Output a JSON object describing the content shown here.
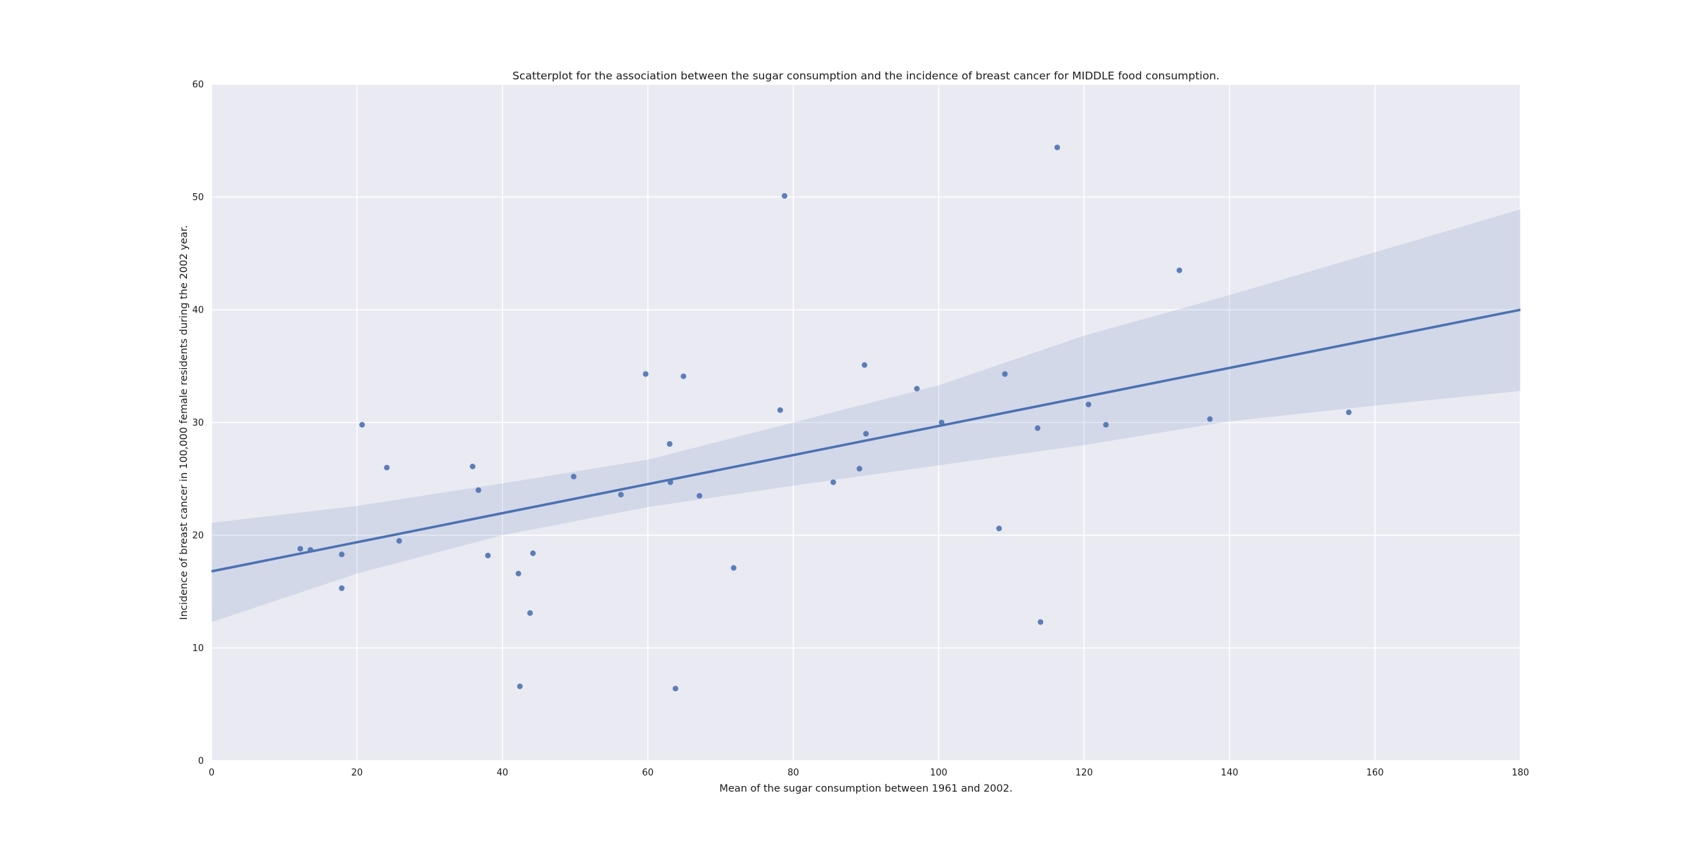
{
  "chart_data": {
    "type": "scatter",
    "title": "Scatterplot for the association between the sugar consumption and the incidence of breast cancer for MIDDLE food consumption.",
    "xlabel": "Mean of the sugar consumption between 1961 and 2002.",
    "ylabel": "Incidence of breast cancer in 100,000 female residents during the 2002 year.",
    "xlim": [
      0,
      180
    ],
    "ylim": [
      0,
      60
    ],
    "xticks": [
      0,
      20,
      40,
      60,
      80,
      100,
      120,
      140,
      160,
      180
    ],
    "yticks": [
      0,
      10,
      20,
      30,
      40,
      50,
      60
    ],
    "grid": true,
    "colors": {
      "background": "#eaeaf2",
      "grid": "#ffffff",
      "points": "#4c72b0",
      "regression_line": "#4c72b0",
      "confidence_band": "#4c72b0"
    },
    "points": [
      {
        "x": 12.2,
        "y": 18.8
      },
      {
        "x": 13.6,
        "y": 18.7
      },
      {
        "x": 17.9,
        "y": 18.3
      },
      {
        "x": 17.9,
        "y": 15.3
      },
      {
        "x": 20.7,
        "y": 29.8
      },
      {
        "x": 24.1,
        "y": 26.0
      },
      {
        "x": 25.8,
        "y": 19.5
      },
      {
        "x": 35.9,
        "y": 26.1
      },
      {
        "x": 36.7,
        "y": 24.0
      },
      {
        "x": 38.0,
        "y": 18.2
      },
      {
        "x": 42.2,
        "y": 16.6
      },
      {
        "x": 42.4,
        "y": 6.6
      },
      {
        "x": 43.8,
        "y": 13.1
      },
      {
        "x": 44.2,
        "y": 18.4
      },
      {
        "x": 49.8,
        "y": 25.2
      },
      {
        "x": 56.3,
        "y": 23.6
      },
      {
        "x": 59.7,
        "y": 34.3
      },
      {
        "x": 63.0,
        "y": 28.1
      },
      {
        "x": 63.1,
        "y": 24.7
      },
      {
        "x": 63.8,
        "y": 6.4
      },
      {
        "x": 64.9,
        "y": 34.1
      },
      {
        "x": 67.1,
        "y": 23.5
      },
      {
        "x": 71.8,
        "y": 17.1
      },
      {
        "x": 78.2,
        "y": 31.1
      },
      {
        "x": 78.8,
        "y": 50.1
      },
      {
        "x": 85.5,
        "y": 24.7
      },
      {
        "x": 89.1,
        "y": 25.9
      },
      {
        "x": 89.8,
        "y": 35.1
      },
      {
        "x": 90.0,
        "y": 29.0
      },
      {
        "x": 97.0,
        "y": 33.0
      },
      {
        "x": 100.4,
        "y": 30.0
      },
      {
        "x": 108.3,
        "y": 20.6
      },
      {
        "x": 109.1,
        "y": 34.3
      },
      {
        "x": 113.6,
        "y": 29.5
      },
      {
        "x": 114.0,
        "y": 12.3
      },
      {
        "x": 116.3,
        "y": 54.4
      },
      {
        "x": 120.6,
        "y": 31.6
      },
      {
        "x": 123.0,
        "y": 29.8
      },
      {
        "x": 133.1,
        "y": 43.5
      },
      {
        "x": 137.3,
        "y": 30.3
      },
      {
        "x": 156.4,
        "y": 30.9
      }
    ],
    "regression_line": {
      "x": [
        0,
        180
      ],
      "y": [
        16.8,
        40.0
      ]
    },
    "confidence_band": {
      "x": [
        0,
        20,
        40,
        60,
        80,
        100,
        120,
        140,
        160,
        180
      ],
      "upper": [
        21.1,
        22.6,
        24.6,
        26.7,
        30.0,
        33.3,
        37.7,
        41.3,
        45.1,
        48.9
      ],
      "lower": [
        12.3,
        16.6,
        20.0,
        22.5,
        24.4,
        26.2,
        28.0,
        30.1,
        31.5,
        32.8
      ]
    }
  }
}
